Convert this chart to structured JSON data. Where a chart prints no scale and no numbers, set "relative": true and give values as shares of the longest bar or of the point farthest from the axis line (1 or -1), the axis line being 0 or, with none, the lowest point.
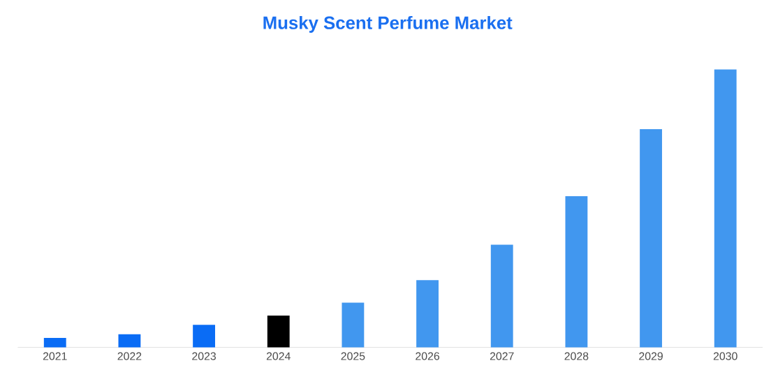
{
  "chart_data": {
    "type": "bar",
    "title": "Musky Scent Perfume Market",
    "relative": true,
    "categories": [
      "2021",
      "2022",
      "2023",
      "2024",
      "2025",
      "2026",
      "2027",
      "2028",
      "2029",
      "2030"
    ],
    "values": [
      0.034,
      0.047,
      0.081,
      0.114,
      0.161,
      0.242,
      0.369,
      0.544,
      0.785,
      1
    ],
    "colors": [
      "#0a6cf5",
      "#0a6cf5",
      "#0a6cf5",
      "#000000",
      "#4197ef",
      "#4197ef",
      "#4197ef",
      "#4197ef",
      "#4197ef",
      "#4197ef"
    ]
  }
}
